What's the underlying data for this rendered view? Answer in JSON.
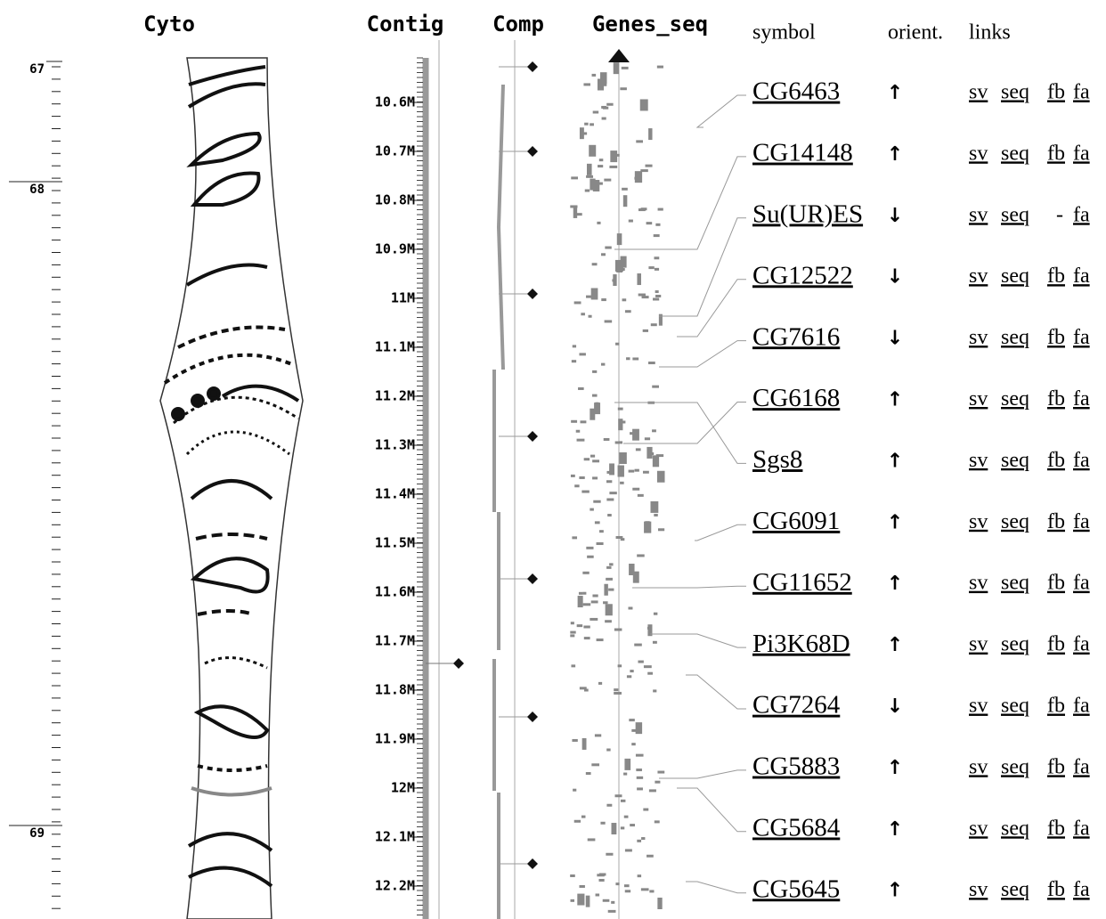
{
  "header": {
    "tracks": [
      "Cyto",
      "Contig",
      "Comp",
      "Genes_seq"
    ],
    "table_columns": [
      "symbol",
      "orient.",
      "links"
    ]
  },
  "cyto_scale": {
    "labels": [
      "67",
      "68",
      "69"
    ]
  },
  "contig_scale": {
    "labels": [
      "10.6M",
      "10.7M",
      "10.8M",
      "10.9M",
      "11M",
      "11.1M",
      "11.2M",
      "11.3M",
      "11.4M",
      "11.5M",
      "11.6M",
      "11.7M",
      "11.8M",
      "11.9M",
      "12M",
      "12.1M",
      "12.2M"
    ]
  },
  "genes": [
    {
      "symbol": "CG6463",
      "orient": "↑",
      "links": [
        "sv",
        "seq",
        "fb",
        "fa"
      ]
    },
    {
      "symbol": "CG14148",
      "orient": "↑",
      "links": [
        "sv",
        "seq",
        "fb",
        "fa"
      ]
    },
    {
      "symbol": "Su(UR)ES",
      "orient": "↓",
      "links": [
        "sv",
        "seq",
        "-",
        "fa"
      ]
    },
    {
      "symbol": "CG12522",
      "orient": "↓",
      "links": [
        "sv",
        "seq",
        "fb",
        "fa"
      ]
    },
    {
      "symbol": "CG7616",
      "orient": "↓",
      "links": [
        "sv",
        "seq",
        "fb",
        "fa"
      ]
    },
    {
      "symbol": "CG6168",
      "orient": "↑",
      "links": [
        "sv",
        "seq",
        "fb",
        "fa"
      ]
    },
    {
      "symbol": "Sgs8",
      "orient": "↑",
      "links": [
        "sv",
        "seq",
        "fb",
        "fa"
      ]
    },
    {
      "symbol": "CG6091",
      "orient": "↑",
      "links": [
        "sv",
        "seq",
        "fb",
        "fa"
      ]
    },
    {
      "symbol": "CG11652",
      "orient": "↑",
      "links": [
        "sv",
        "seq",
        "fb",
        "fa"
      ]
    },
    {
      "symbol": "Pi3K68D",
      "orient": "↑",
      "links": [
        "sv",
        "seq",
        "fb",
        "fa"
      ]
    },
    {
      "symbol": "CG7264",
      "orient": "↓",
      "links": [
        "sv",
        "seq",
        "fb",
        "fa"
      ]
    },
    {
      "symbol": "CG5883",
      "orient": "↑",
      "links": [
        "sv",
        "seq",
        "fb",
        "fa"
      ]
    },
    {
      "symbol": "CG5684",
      "orient": "↑",
      "links": [
        "sv",
        "seq",
        "fb",
        "fa"
      ]
    },
    {
      "symbol": "CG5645",
      "orient": "↑",
      "links": [
        "sv",
        "seq",
        "fb",
        "fa"
      ]
    }
  ]
}
